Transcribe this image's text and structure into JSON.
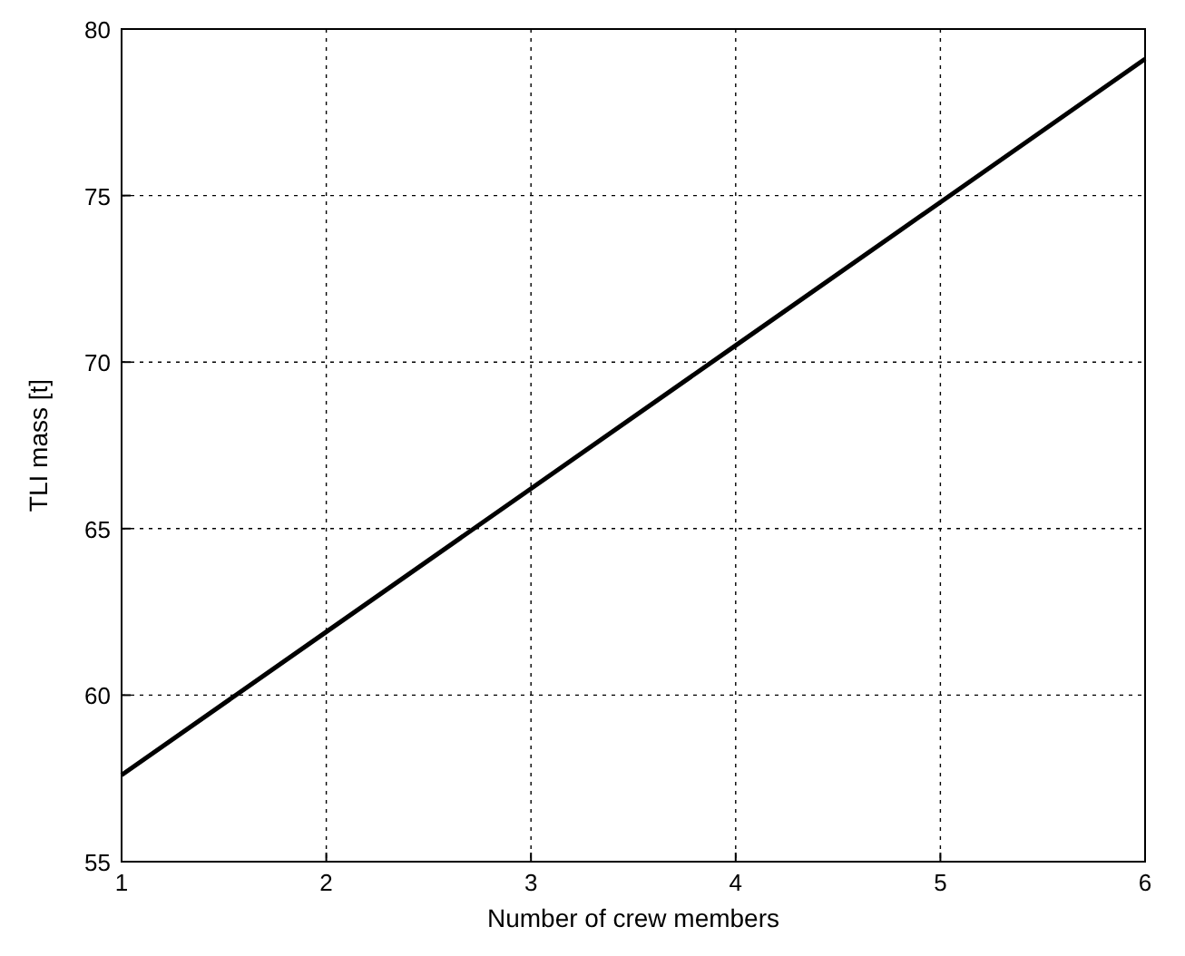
{
  "chart_data": {
    "type": "line",
    "xlabel": "Number of crew members",
    "ylabel": "TLI mass [t]",
    "x": [
      1,
      2,
      3,
      4,
      5,
      6
    ],
    "series": [
      {
        "color": "#000000",
        "values": [
          57.6,
          61.9,
          66.2,
          70.5,
          74.8,
          79.1
        ]
      }
    ],
    "xlim": [
      1,
      6
    ],
    "xticks": [
      1,
      2,
      3,
      4,
      5,
      6
    ],
    "ylim": [
      55,
      80
    ],
    "yticks": [
      55,
      60,
      65,
      70,
      75,
      80
    ],
    "grid": true,
    "marker": "none",
    "line_style": "solid"
  }
}
